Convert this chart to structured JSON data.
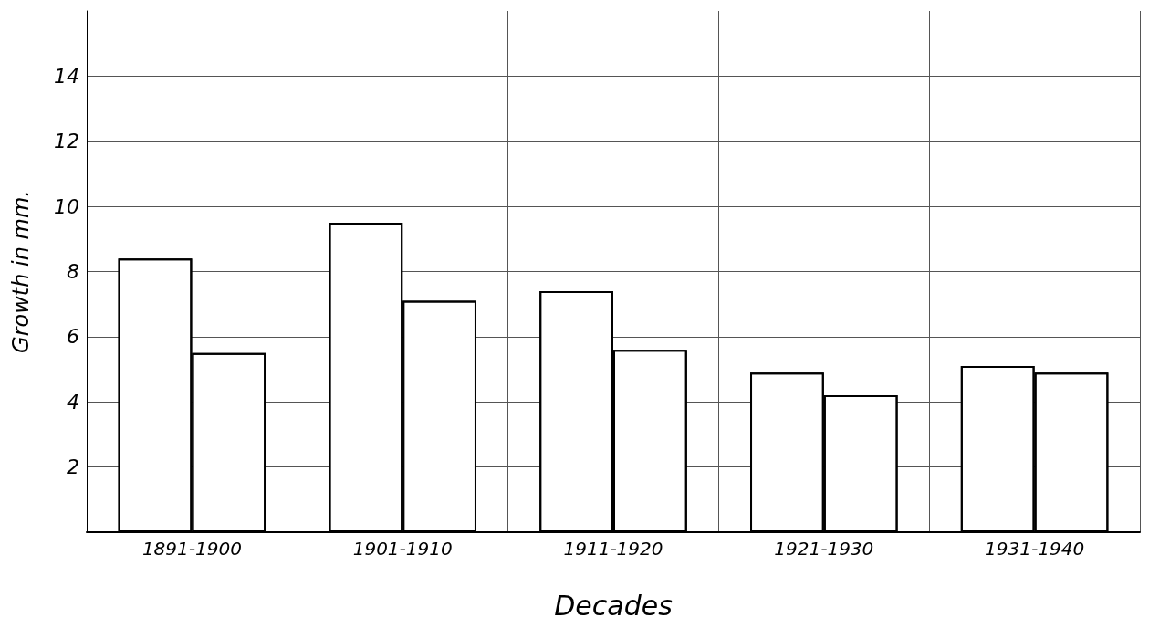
{
  "chart_data": {
    "type": "bar",
    "xlabel": "Decades",
    "ylabel": "Growth in mm.",
    "categories": [
      "1891-1900",
      "1901-1910",
      "1911-1920",
      "1921-1930",
      "1931-1940"
    ],
    "series": [
      {
        "color": "#ffffff",
        "values": [
          8.4,
          9.5,
          7.4,
          4.9,
          5.1
        ]
      },
      {
        "color": "#ffffff",
        "values": [
          5.5,
          7.1,
          5.6,
          4.2,
          4.9
        ]
      }
    ],
    "ylim": [
      0,
      16
    ],
    "yticks": [
      2,
      4,
      6,
      8,
      10,
      12,
      14
    ],
    "grid": true
  }
}
